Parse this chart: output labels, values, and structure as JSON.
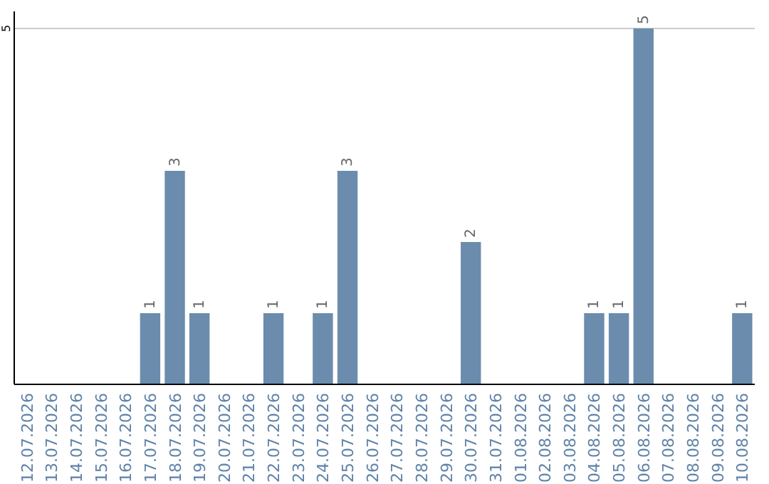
{
  "chart_data": {
    "type": "bar",
    "categories": [
      "12.07.2026",
      "13.07.2026",
      "14.07.2026",
      "15.07.2026",
      "16.07.2026",
      "17.07.2026",
      "18.07.2026",
      "19.07.2026",
      "20.07.2026",
      "21.07.2026",
      "22.07.2026",
      "23.07.2026",
      "24.07.2026",
      "25.07.2026",
      "26.07.2026",
      "27.07.2026",
      "28.07.2026",
      "29.07.2026",
      "30.07.2026",
      "31.07.2026",
      "01.08.2026",
      "02.08.2026",
      "03.08.2026",
      "04.08.2026",
      "05.08.2026",
      "06.08.2026",
      "07.08.2026",
      "08.08.2026",
      "09.08.2026",
      "10.08.2026"
    ],
    "values": [
      0,
      0,
      0,
      0,
      0,
      1,
      3,
      1,
      0,
      0,
      1,
      0,
      1,
      3,
      0,
      0,
      0,
      0,
      2,
      0,
      0,
      0,
      0,
      1,
      1,
      5,
      0,
      0,
      0,
      1
    ],
    "value_labels": [
      null,
      null,
      null,
      null,
      null,
      "1",
      "3",
      "1",
      null,
      null,
      "1",
      null,
      "1",
      "3",
      null,
      null,
      null,
      null,
      "2",
      null,
      null,
      null,
      null,
      "1",
      "1",
      "5",
      null,
      null,
      null,
      "1"
    ],
    "color": "#6b8cad",
    "ylim": [
      0,
      5
    ],
    "yticks": [
      5
    ],
    "ref_lines": [
      {
        "axis": "y",
        "value": 5,
        "color": "#cccccc"
      }
    ]
  }
}
